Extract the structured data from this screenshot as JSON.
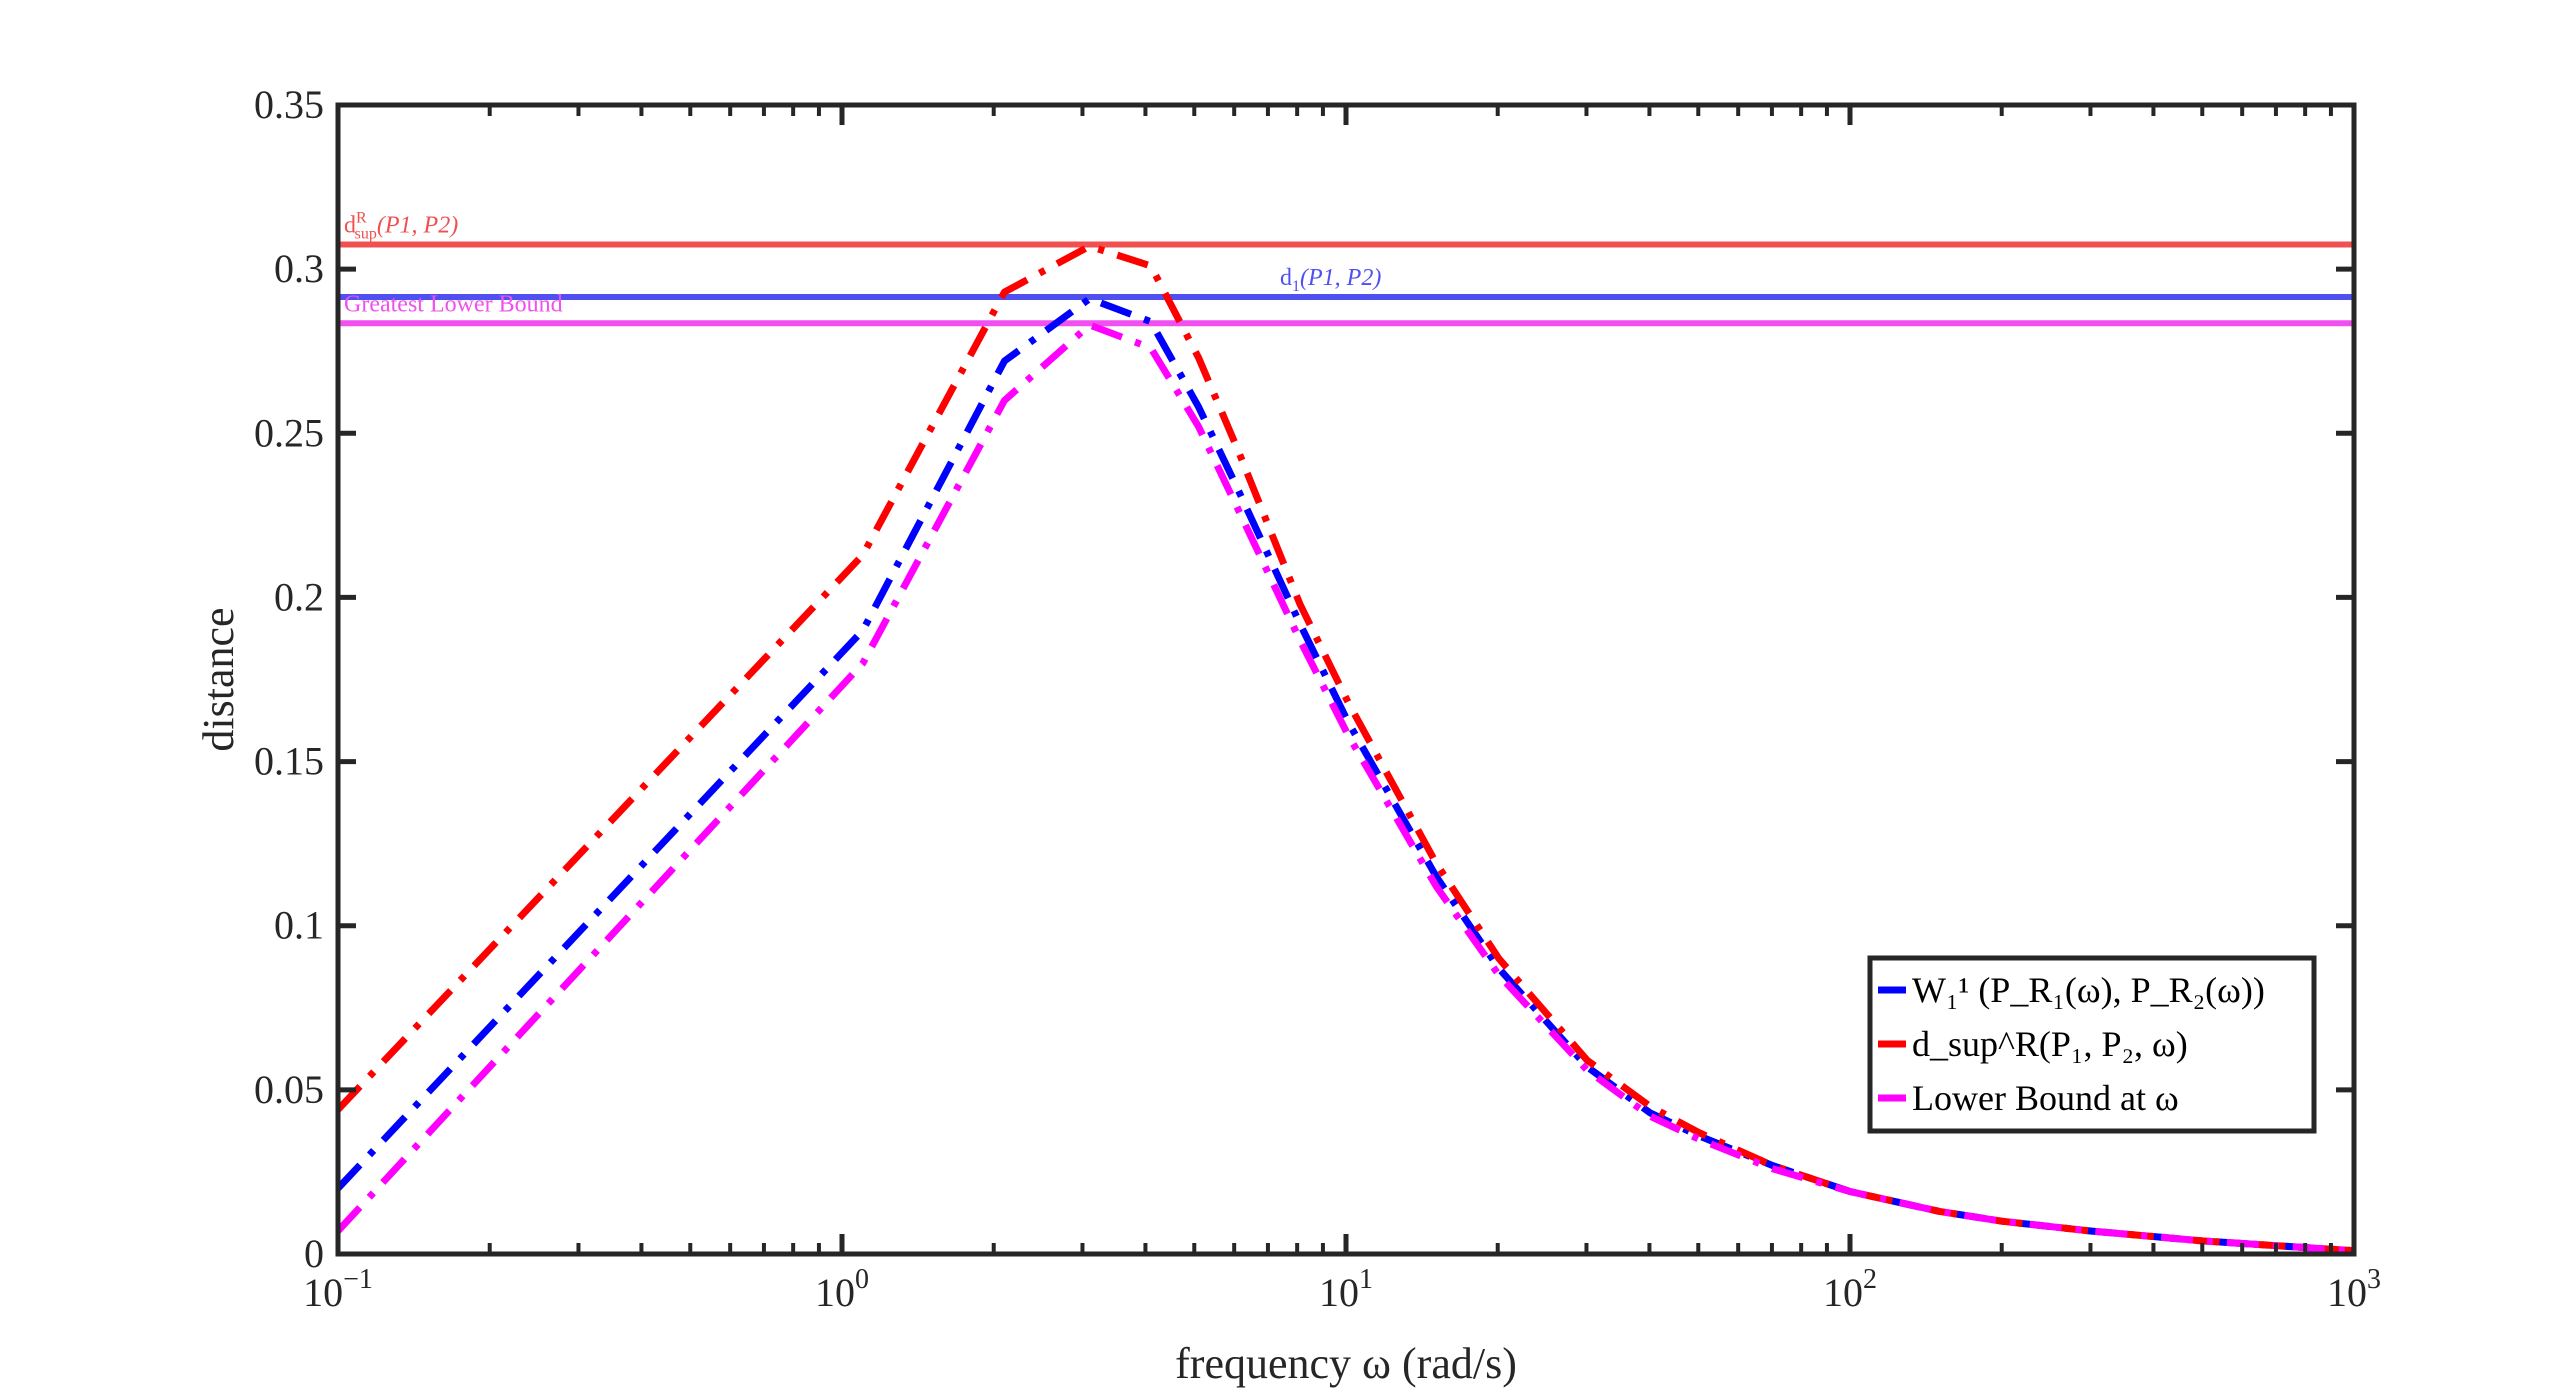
{
  "chart_data": {
    "type": "line",
    "xscale": "log",
    "xlim": [
      0.1,
      1000
    ],
    "ylim": [
      0,
      0.35
    ],
    "xlabel": "frequency ω (rad/s)",
    "ylabel": "distance",
    "x_ticks": [
      {
        "base": "10",
        "exp": "−1"
      },
      {
        "base": "10",
        "exp": "0"
      },
      {
        "base": "10",
        "exp": "1"
      },
      {
        "base": "10",
        "exp": "2"
      },
      {
        "base": "10",
        "exp": "3"
      }
    ],
    "y_ticks": [
      "0",
      "0.05",
      "0.1",
      "0.15",
      "0.2",
      "0.25",
      "0.3",
      "0.35"
    ],
    "y_tick_values": [
      0,
      0.05,
      0.1,
      0.15,
      0.2,
      0.25,
      0.3,
      0.35
    ],
    "x": [
      0.1,
      1.1,
      2.1,
      3.1,
      4.1,
      5.1,
      6.1,
      8.1,
      10.1,
      15.1,
      20.1,
      30.1,
      40.1,
      50.1,
      70.1,
      100.1,
      150.1,
      200.1,
      300.1,
      500.1,
      1000
    ],
    "series": [
      {
        "name": "W1^1 (P_R1(ω), P_R2(ω))",
        "color": "#0000ff",
        "values": [
          0.02,
          0.19,
          0.272,
          0.291,
          0.284,
          0.258,
          0.233,
          0.192,
          0.162,
          0.115,
          0.087,
          0.057,
          0.043,
          0.036,
          0.027,
          0.019,
          0.013,
          0.01,
          0.007,
          0.004,
          0.001
        ]
      },
      {
        "name": "d_sup^R(P1, P2, ω)",
        "color": "#ff0000",
        "values": [
          0.044,
          0.213,
          0.293,
          0.307,
          0.301,
          0.273,
          0.245,
          0.198,
          0.168,
          0.119,
          0.09,
          0.059,
          0.045,
          0.037,
          0.027,
          0.019,
          0.013,
          0.01,
          0.007,
          0.004,
          0.001
        ]
      },
      {
        "name": "Lower Bound at ω",
        "color": "#ff00ff",
        "values": [
          0.007,
          0.18,
          0.26,
          0.283,
          0.276,
          0.252,
          0.227,
          0.187,
          0.158,
          0.112,
          0.085,
          0.056,
          0.042,
          0.035,
          0.026,
          0.019,
          0.013,
          0.01,
          0.007,
          0.004,
          0.001
        ]
      }
    ],
    "hlines": [
      {
        "name": "d_sup^R(P1, P2)",
        "label_main": "d",
        "label_sup": "R",
        "label_sub": "sup",
        "label_args": "(P1, P2)",
        "value": 0.3075,
        "color": "#f05050",
        "label_anchor": "left"
      },
      {
        "name": "d1(P1, P2)",
        "label_main": "d",
        "label_sub": "1",
        "label_args": "(P1, P2)",
        "value": 0.2915,
        "color": "#5050f0",
        "label_anchor": "mid"
      },
      {
        "name": "Greatest Lower Bound",
        "label_main": "Greatest Lower Bound",
        "value": 0.2835,
        "color": "#f050f0",
        "label_anchor": "left"
      }
    ],
    "legend": {
      "position": "bottom-right",
      "entries": [
        {
          "color": "#0000ff",
          "text": "W₁¹ (P_R₁(ω), P_R₂(ω))"
        },
        {
          "color": "#ff0000",
          "text": "d_sup^R(P₁, P₂, ω)"
        },
        {
          "color": "#ff00ff",
          "text": "Lower Bound at ω"
        }
      ]
    }
  }
}
